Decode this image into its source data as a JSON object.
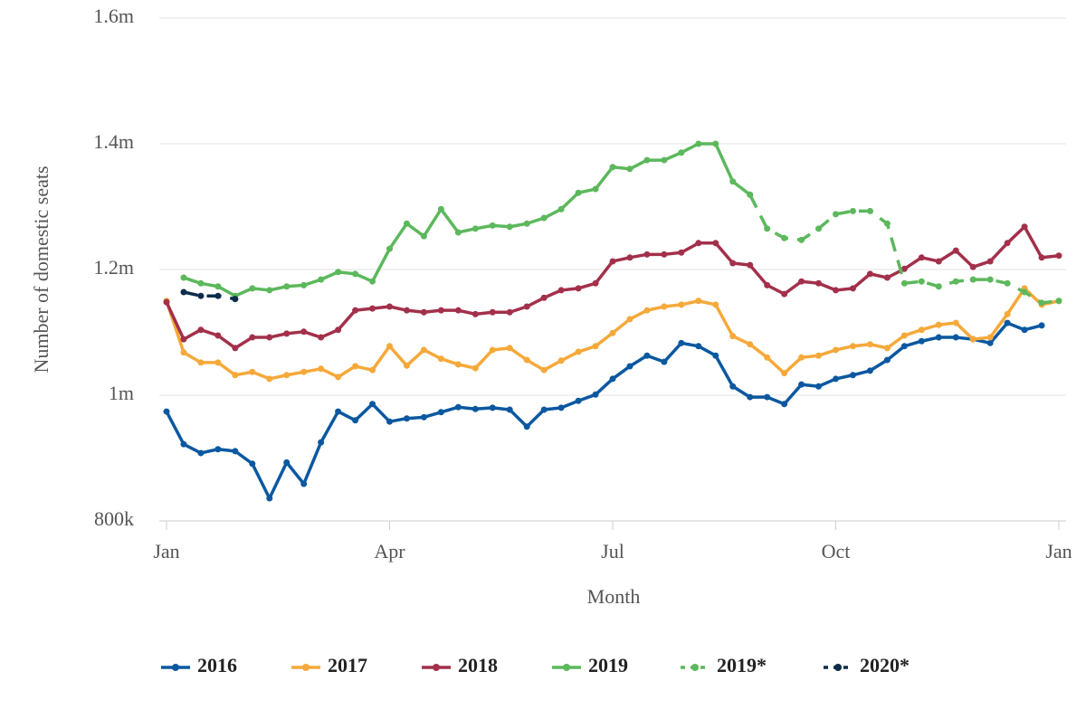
{
  "chart_data": {
    "type": "line",
    "xlabel": "Month",
    "ylabel": "Number of domestic seats",
    "xlim": [
      0,
      52
    ],
    "xticks": [
      {
        "value": 0,
        "label": "Jan"
      },
      {
        "value": 13,
        "label": "Apr"
      },
      {
        "value": 26,
        "label": "Jul"
      },
      {
        "value": 39,
        "label": "Oct"
      },
      {
        "value": 52,
        "label": "Jan"
      }
    ],
    "ylim": [
      800000,
      1600000
    ],
    "yticks": [
      {
        "value": 800000,
        "label": "800k"
      },
      {
        "value": 1000000,
        "label": "1m"
      },
      {
        "value": 1200000,
        "label": "1.2m"
      },
      {
        "value": 1400000,
        "label": "1.4m"
      },
      {
        "value": 1600000,
        "label": "1.6m"
      }
    ],
    "grid": true,
    "legend": "bottom",
    "series": [
      {
        "name": "2016",
        "color": "#0b58a0",
        "dashed": false,
        "x": [
          0,
          1,
          2,
          3,
          4,
          5,
          6,
          7,
          8,
          9,
          10,
          11,
          12,
          13,
          14,
          15,
          16,
          17,
          18,
          19,
          20,
          21,
          22,
          23,
          24,
          25,
          26,
          27,
          28,
          29,
          30,
          31,
          32,
          33,
          34,
          35,
          36,
          37,
          38,
          39,
          40,
          41,
          42,
          43,
          44,
          45,
          46,
          47,
          48,
          49,
          50,
          51
        ],
        "values": [
          974000,
          922000,
          908000,
          914000,
          911000,
          891000,
          836000,
          893000,
          859000,
          925000,
          974000,
          960000,
          986000,
          958000,
          963000,
          965000,
          973000,
          981000,
          978000,
          980000,
          977000,
          950000,
          977000,
          980000,
          991000,
          1001000,
          1026000,
          1046000,
          1063000,
          1053000,
          1083000,
          1078000,
          1063000,
          1014000,
          997000,
          997000,
          986000,
          1017000,
          1014000,
          1026000,
          1032000,
          1039000,
          1056000,
          1078000,
          1086000,
          1092000,
          1092000,
          1089000,
          1083000,
          1115000,
          1104000,
          1111000
        ]
      },
      {
        "name": "2017",
        "color": "#f5a93a",
        "dashed": false,
        "x": [
          0,
          1,
          2,
          3,
          4,
          5,
          6,
          7,
          8,
          9,
          10,
          11,
          12,
          13,
          14,
          15,
          16,
          17,
          18,
          19,
          20,
          21,
          22,
          23,
          24,
          25,
          26,
          27,
          28,
          29,
          30,
          31,
          32,
          33,
          34,
          35,
          36,
          37,
          38,
          39,
          40,
          41,
          42,
          43,
          44,
          45,
          46,
          47,
          48,
          49,
          50,
          51,
          52
        ],
        "values": [
          1150000,
          1068000,
          1052000,
          1052000,
          1032000,
          1037000,
          1026000,
          1032000,
          1037000,
          1042000,
          1029000,
          1046000,
          1040000,
          1078000,
          1047000,
          1072000,
          1058000,
          1049000,
          1043000,
          1072000,
          1075000,
          1056000,
          1040000,
          1055000,
          1069000,
          1078000,
          1099000,
          1121000,
          1135000,
          1141000,
          1144000,
          1150000,
          1144000,
          1094000,
          1081000,
          1060000,
          1035000,
          1060000,
          1063000,
          1072000,
          1078000,
          1081000,
          1075000,
          1095000,
          1104000,
          1112000,
          1115000,
          1089000,
          1092000,
          1129000,
          1170000,
          1144000,
          1150000
        ]
      },
      {
        "name": "2018",
        "color": "#a3304b",
        "dashed": false,
        "x": [
          0,
          1,
          2,
          3,
          4,
          5,
          6,
          7,
          8,
          9,
          10,
          11,
          12,
          13,
          14,
          15,
          16,
          17,
          18,
          19,
          20,
          21,
          22,
          23,
          24,
          25,
          26,
          27,
          28,
          29,
          30,
          31,
          32,
          33,
          34,
          35,
          36,
          37,
          38,
          39,
          40,
          41,
          42,
          43,
          44,
          45,
          46,
          47,
          48,
          49,
          50,
          51,
          52
        ],
        "values": [
          1148000,
          1089000,
          1104000,
          1095000,
          1075000,
          1092000,
          1092000,
          1098000,
          1101000,
          1092000,
          1104000,
          1135000,
          1138000,
          1141000,
          1135000,
          1132000,
          1135000,
          1135000,
          1129000,
          1132000,
          1132000,
          1141000,
          1155000,
          1167000,
          1170000,
          1178000,
          1213000,
          1219000,
          1224000,
          1224000,
          1227000,
          1242000,
          1242000,
          1210000,
          1207000,
          1175000,
          1161000,
          1181000,
          1178000,
          1167000,
          1170000,
          1193000,
          1187000,
          1201000,
          1219000,
          1213000,
          1230000,
          1204000,
          1213000,
          1242000,
          1268000,
          1219000,
          1222000
        ]
      },
      {
        "name": "2019",
        "color": "#5cb85c",
        "dashed": false,
        "x": [
          1,
          2,
          3,
          4,
          5,
          6,
          7,
          8,
          9,
          10,
          11,
          12,
          13,
          14,
          15,
          16,
          17,
          18,
          19,
          20,
          21,
          22,
          23,
          24,
          25,
          26,
          27,
          28,
          29,
          30,
          31,
          32,
          33,
          34
        ],
        "values": [
          1187000,
          1178000,
          1173000,
          1158000,
          1170000,
          1167000,
          1173000,
          1175000,
          1184000,
          1196000,
          1193000,
          1181000,
          1233000,
          1273000,
          1253000,
          1296000,
          1259000,
          1265000,
          1270000,
          1268000,
          1273000,
          1282000,
          1296000,
          1322000,
          1328000,
          1363000,
          1360000,
          1374000,
          1374000,
          1386000,
          1400000,
          1400000,
          1340000,
          1319000
        ]
      },
      {
        "name": "2019*",
        "color": "#5cb85c",
        "dashed": true,
        "x": [
          34,
          35,
          36,
          37,
          38,
          39,
          40,
          41,
          42,
          43,
          44,
          45,
          46,
          47,
          48,
          49,
          50,
          51,
          52
        ],
        "values": [
          1319000,
          1265000,
          1250000,
          1247000,
          1265000,
          1288000,
          1293000,
          1293000,
          1273000,
          1178000,
          1181000,
          1173000,
          1181000,
          1184000,
          1184000,
          1178000,
          1164000,
          1147000,
          1150000
        ]
      },
      {
        "name": "2020*",
        "color": "#0c2c4a",
        "dashed": true,
        "x": [
          1,
          2,
          3,
          4
        ],
        "values": [
          1164000,
          1158000,
          1158000,
          1153000
        ]
      }
    ]
  }
}
